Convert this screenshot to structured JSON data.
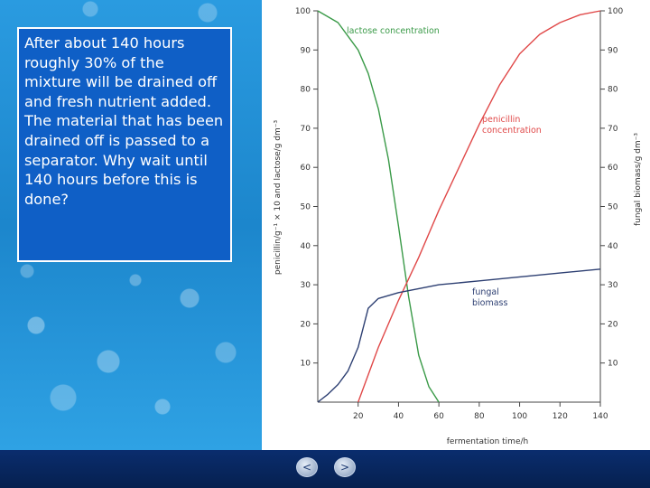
{
  "slide": {
    "question": "After about 140 hours roughly 30% of the mixture will be drained off and fresh nutrient added. The material that has been drained off is passed to a separator. Why wait until 140 hours before this is done?"
  },
  "nav": {
    "prev_label": "<",
    "next_label": ">"
  },
  "colors": {
    "lactose": "#3a9a48",
    "penicillin": "#e04848",
    "biomass": "#2d3f72"
  },
  "chart_data": {
    "type": "line",
    "xlabel": "fermentation time/h",
    "ylabel_left": "penicillin/g⁻¹ × 10 and lactose/g dm⁻³",
    "ylabel_right": "fungal biomass/g dm⁻³",
    "x_ticks": [
      20,
      40,
      60,
      80,
      100,
      120,
      140
    ],
    "y_ticks": [
      10,
      20,
      30,
      40,
      50,
      60,
      70,
      80,
      90,
      100
    ],
    "xlim": [
      0,
      140
    ],
    "ylim": [
      0,
      100
    ],
    "grid": false,
    "series": [
      {
        "name": "lactose concentration",
        "label_lines": [
          "lactose concentration"
        ],
        "color": "#3a9a48",
        "x": [
          0,
          10,
          20,
          25,
          30,
          35,
          40,
          45,
          50,
          55,
          60
        ],
        "y": [
          100,
          97,
          90,
          84,
          75,
          62,
          45,
          27,
          12,
          4,
          0
        ]
      },
      {
        "name": "penicillin concentration",
        "label_lines": [
          "penicillin",
          "concentration"
        ],
        "color": "#e04848",
        "x": [
          20,
          30,
          40,
          50,
          60,
          70,
          80,
          90,
          100,
          110,
          120,
          130,
          140
        ],
        "y": [
          0,
          14,
          26,
          37,
          49,
          60,
          71,
          81,
          89,
          94,
          97,
          99,
          100
        ]
      },
      {
        "name": "fungal biomass",
        "label_lines": [
          "fungal",
          "biomass"
        ],
        "color": "#2d3f72",
        "x": [
          0,
          5,
          10,
          15,
          20,
          25,
          30,
          40,
          50,
          60,
          80,
          100,
          120,
          140
        ],
        "y": [
          0,
          2,
          4.5,
          8,
          14,
          24,
          26.5,
          28,
          29,
          30,
          31,
          32,
          33,
          34
        ]
      }
    ]
  }
}
